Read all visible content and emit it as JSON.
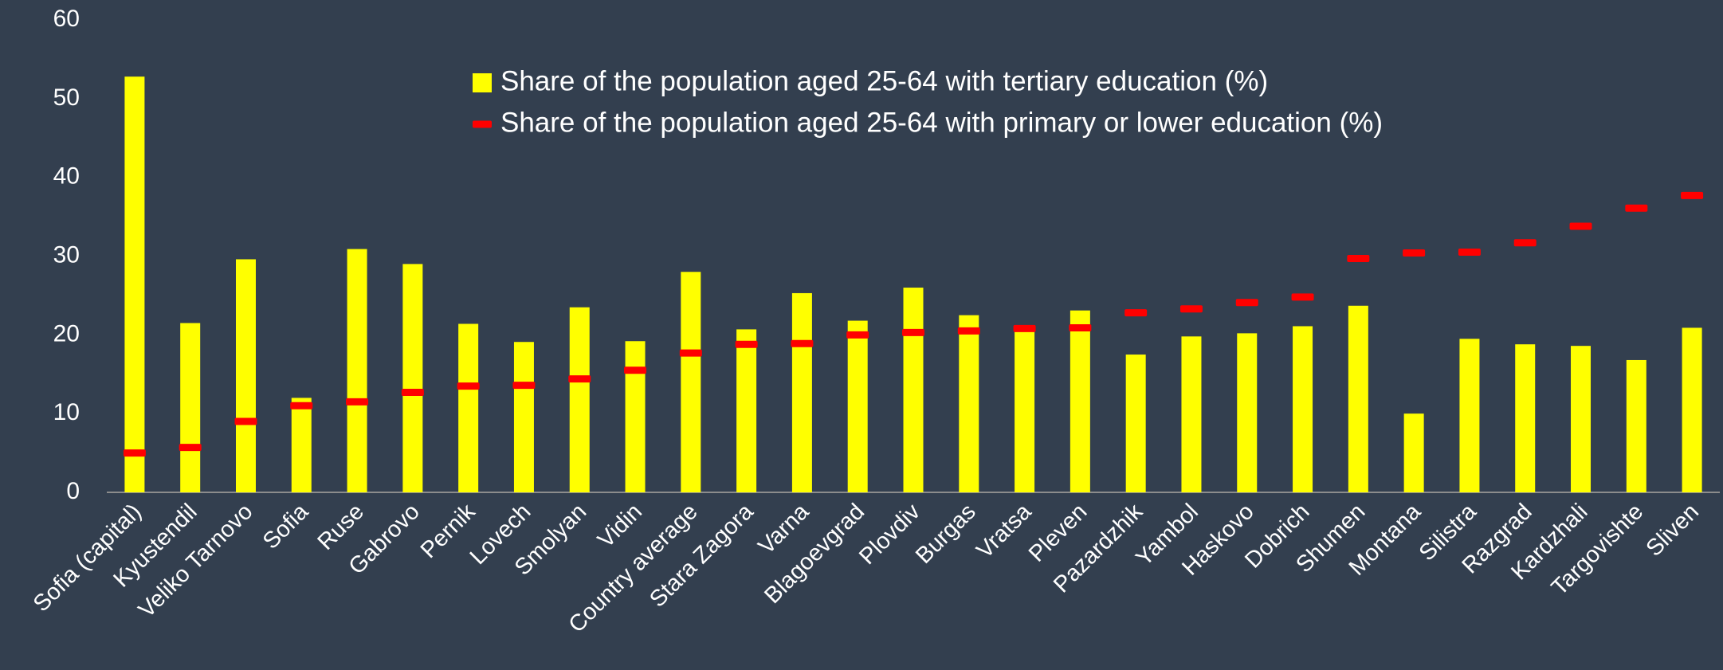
{
  "chart_data": {
    "type": "bar",
    "categories": [
      "Sofia (capital)",
      "Kyustendil",
      "Veliko Tarnovo",
      "Sofia",
      "Ruse",
      "Gabrovo",
      "Pernik",
      "Lovech",
      "Smolyan",
      "Vidin",
      "Country average",
      "Stara Zagora",
      "Varna",
      "Blagoevgrad",
      "Plovdiv",
      "Burgas",
      "Vratsa",
      "Pleven",
      "Pazardzhik",
      "Yambol",
      "Haskovo",
      "Dobrich",
      "Shumen",
      "Montana",
      "Silistra",
      "Razgrad",
      "Kardzhali",
      "Targovishte",
      "Sliven"
    ],
    "series": [
      {
        "name": "Share of the population aged 25-64 with tertiary education (%)",
        "color": "#ffff00",
        "mark": "bar",
        "values": [
          52.8,
          21.5,
          29.6,
          12.0,
          30.9,
          29.0,
          21.4,
          19.1,
          23.5,
          19.2,
          28.0,
          20.7,
          25.3,
          21.8,
          26.0,
          22.5,
          21.0,
          23.1,
          17.5,
          19.8,
          20.2,
          21.1,
          23.7,
          10.0,
          19.5,
          18.8,
          18.6,
          16.8,
          20.9
        ]
      },
      {
        "name": "Share of the population aged 25-64 with primary or lower education (%)",
        "color": "#ff0000",
        "mark": "dash",
        "values": [
          5.0,
          5.7,
          9.0,
          11.0,
          11.5,
          12.7,
          13.5,
          13.6,
          14.4,
          15.5,
          17.7,
          18.8,
          18.9,
          20.0,
          20.3,
          20.5,
          20.8,
          20.9,
          22.8,
          23.3,
          24.1,
          24.8,
          29.7,
          30.4,
          30.5,
          31.7,
          33.8,
          36.1,
          37.7
        ]
      }
    ],
    "ylim": [
      0,
      60
    ],
    "yticks": [
      0,
      10,
      20,
      30,
      40,
      50,
      60
    ],
    "grid": false
  }
}
